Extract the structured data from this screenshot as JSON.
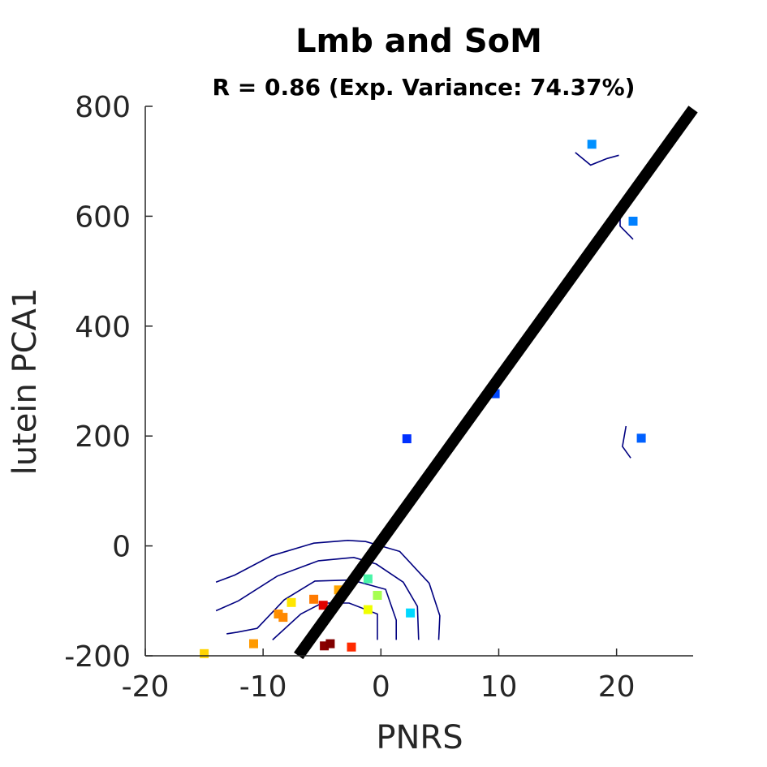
{
  "chart_data": {
    "type": "scatter",
    "title": "Lmb and SoM",
    "subtitle": "R = 0.86 (Exp. Variance: 74.37%)",
    "xlabel": "PNRS",
    "ylabel": "lutein PCA1",
    "xlim": [
      -20,
      26.5
    ],
    "ylim": [
      -200,
      800
    ],
    "xticks": [
      -20,
      -10,
      0,
      10,
      20
    ],
    "yticks": [
      -200,
      0,
      200,
      400,
      600,
      800
    ],
    "xtick_labels": [
      "-20",
      "-10",
      "0",
      "10",
      "20"
    ],
    "ytick_labels": [
      "-200",
      "0",
      "200",
      "400",
      "600",
      "800"
    ],
    "fit_line": {
      "x": [
        -7,
        26.5
      ],
      "y": [
        -200,
        795
      ],
      "color": "#000000"
    },
    "points": [
      {
        "x": -15.0,
        "y": -196,
        "color": "#ffd400"
      },
      {
        "x": -10.8,
        "y": -178,
        "color": "#ff9a00"
      },
      {
        "x": -8.7,
        "y": -124,
        "color": "#ff9000"
      },
      {
        "x": -8.3,
        "y": -130,
        "color": "#ff8800"
      },
      {
        "x": -7.6,
        "y": -103,
        "color": "#ffe600"
      },
      {
        "x": -5.7,
        "y": -97,
        "color": "#ff7a00"
      },
      {
        "x": -4.9,
        "y": -108,
        "color": "#e00000"
      },
      {
        "x": -3.6,
        "y": -80,
        "color": "#ffa500"
      },
      {
        "x": -4.8,
        "y": -182,
        "color": "#8b0000"
      },
      {
        "x": -4.3,
        "y": -178,
        "color": "#800000"
      },
      {
        "x": -2.5,
        "y": -184,
        "color": "#ff2a00"
      },
      {
        "x": -1.1,
        "y": -60,
        "color": "#49f5a8"
      },
      {
        "x": -1.1,
        "y": -116,
        "color": "#f0ff00"
      },
      {
        "x": -0.3,
        "y": -90,
        "color": "#a6ff50"
      },
      {
        "x": 2.5,
        "y": -122,
        "color": "#00d8ff"
      },
      {
        "x": 2.2,
        "y": 195,
        "color": "#0030ff"
      },
      {
        "x": 9.7,
        "y": 277,
        "color": "#0048ff"
      },
      {
        "x": 17.9,
        "y": 731,
        "color": "#0090ff"
      },
      {
        "x": 21.4,
        "y": 591,
        "color": "#0080ff"
      },
      {
        "x": 22.1,
        "y": 196,
        "color": "#0060ff"
      }
    ],
    "contours": [
      [
        [
          -14,
          -66
        ],
        [
          -12.4,
          -53
        ],
        [
          -9.3,
          -18
        ],
        [
          -5.7,
          5
        ],
        [
          -2.8,
          10
        ],
        [
          -1.3,
          8
        ],
        [
          1.6,
          -10
        ],
        [
          4.1,
          -68
        ],
        [
          5.0,
          -127
        ],
        [
          4.9,
          -171
        ]
      ],
      [
        [
          -14,
          -118
        ],
        [
          -12.1,
          -100
        ],
        [
          -8.8,
          -55
        ],
        [
          -5.3,
          -27
        ],
        [
          -2.3,
          -21
        ],
        [
          -0.4,
          -33
        ],
        [
          1.9,
          -66
        ],
        [
          3.1,
          -110
        ],
        [
          3.2,
          -171
        ]
      ],
      [
        [
          -13.1,
          -160
        ],
        [
          -12.2,
          -157
        ],
        [
          -10.5,
          -150
        ],
        [
          -8.2,
          -98
        ],
        [
          -5.6,
          -64
        ],
        [
          -2.5,
          -62
        ],
        [
          0.4,
          -79
        ],
        [
          1.3,
          -135
        ],
        [
          1.3,
          -171
        ]
      ],
      [
        [
          -9.2,
          -171
        ],
        [
          -6.8,
          -124
        ],
        [
          -5.0,
          -104
        ],
        [
          -2.7,
          -104
        ],
        [
          -0.3,
          -124
        ],
        [
          -0.3,
          -171
        ]
      ],
      [
        [
          16.5,
          716
        ],
        [
          17.8,
          693
        ],
        [
          19.2,
          705
        ],
        [
          20.2,
          711
        ]
      ],
      [
        [
          20.3,
          600
        ],
        [
          20.3,
          582
        ],
        [
          21.4,
          558
        ]
      ],
      [
        [
          20.8,
          218
        ],
        [
          20.5,
          181
        ],
        [
          21.2,
          160
        ]
      ]
    ],
    "contour_color": "#000080",
    "grid": false,
    "legend": "none"
  }
}
